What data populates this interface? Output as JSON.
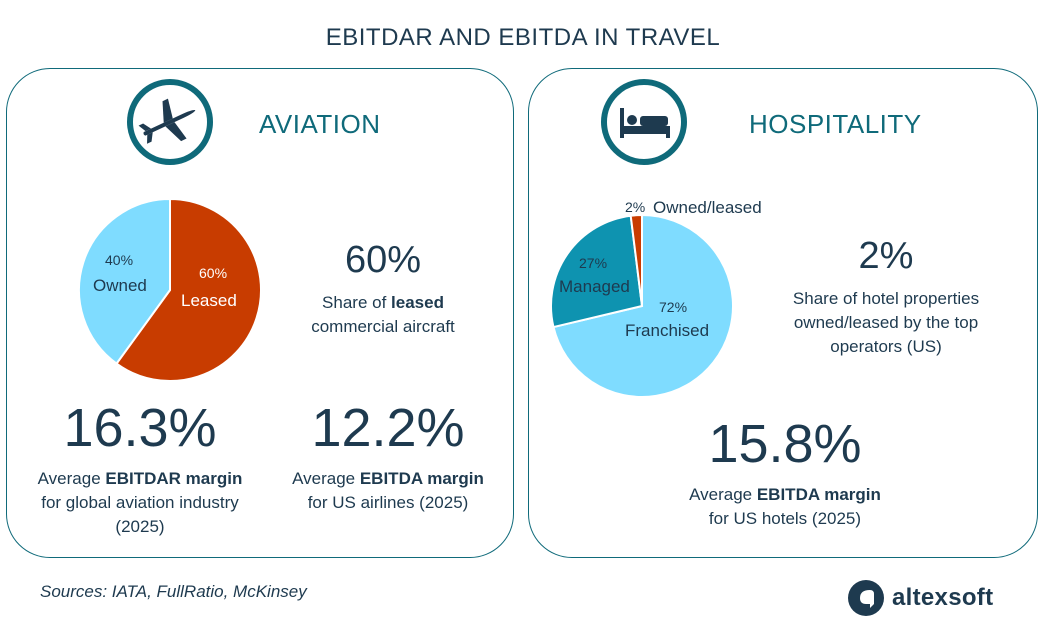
{
  "title": "EBITDAR AND EBITDA IN TRAVEL",
  "aviation": {
    "heading": "AVIATION",
    "icon": "airplane-icon",
    "stat1": {
      "value": "60%",
      "caption_pre": "Share of ",
      "caption_bold": "leased",
      "caption_post": "commercial aircraft"
    },
    "stat2": {
      "value": "16.3%",
      "caption_pre": "Average ",
      "caption_bold": "EBITDAR margin",
      "caption_post": "for global aviation industry (2025)"
    },
    "stat3": {
      "value": "12.2%",
      "caption_pre": "Average ",
      "caption_bold": "EBITDA margin",
      "caption_post": "for US airlines (2025)"
    }
  },
  "hospitality": {
    "heading": "HOSPITALITY",
    "icon": "bed-icon",
    "stat1": {
      "value": "2%",
      "caption_line1": "Share of hotel properties",
      "caption_line2": "owned/leased by the top",
      "caption_line3": "operators (US)"
    },
    "stat2": {
      "value": "15.8%",
      "caption_pre": "Average ",
      "caption_bold": "EBITDA margin",
      "caption_post": "for US hotels (2025)"
    }
  },
  "sources": "Sources: IATA, FullRatio, McKinsey",
  "logo_text": "altexsoft",
  "colors": {
    "teal": "#0f6a7a",
    "navy": "#1e3a4f",
    "light_blue": "#7fdcff",
    "mid_blue": "#0e93b0",
    "orange": "#c83c00"
  },
  "chart_data": [
    {
      "type": "pie",
      "categories": [
        "Owned",
        "Leased"
      ],
      "values": [
        40,
        60
      ],
      "labels": [
        "40%",
        "60%"
      ],
      "colors": [
        "#7fdcff",
        "#c83c00"
      ]
    },
    {
      "type": "pie",
      "categories": [
        "Franchised",
        "Managed",
        "Owned/leased"
      ],
      "values": [
        72,
        27,
        2
      ],
      "labels": [
        "72%",
        "27%",
        "2%"
      ],
      "colors": [
        "#7fdcff",
        "#0e93b0",
        "#c83c00"
      ]
    }
  ]
}
